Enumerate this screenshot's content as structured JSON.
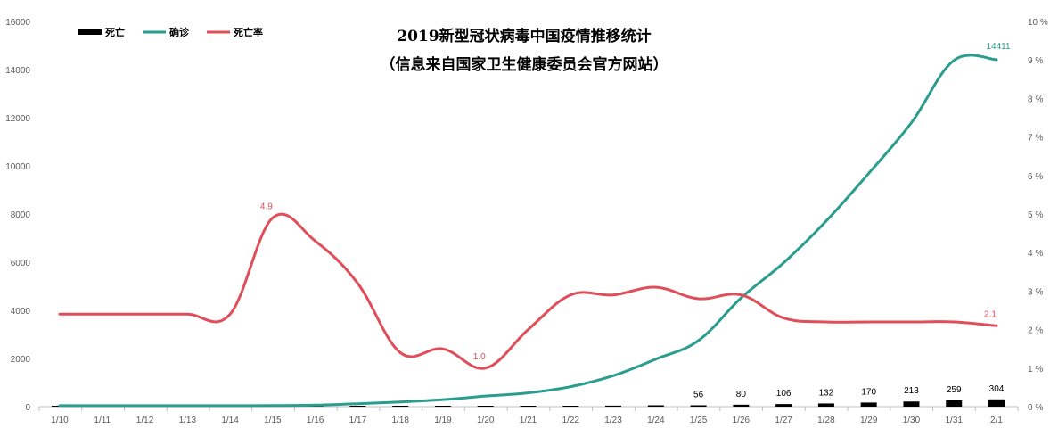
{
  "chart_data": {
    "type": "combo",
    "title": "2019新型冠状病毒中国疫情推移统计",
    "subtitle": "（信息来自国家卫生健康委员会官方网站）",
    "categories": [
      "1/10",
      "1/11",
      "1/12",
      "1/13",
      "1/14",
      "1/15",
      "1/16",
      "1/17",
      "1/18",
      "1/19",
      "1/20",
      "1/21",
      "1/22",
      "1/23",
      "1/24",
      "1/25",
      "1/26",
      "1/27",
      "1/28",
      "1/29",
      "1/30",
      "1/31",
      "2/1"
    ],
    "series": [
      {
        "name": "死亡",
        "type": "bar",
        "axis": "left",
        "color": "#000000",
        "values": [
          1,
          1,
          2,
          2,
          2,
          2,
          2,
          3,
          4,
          6,
          9,
          17,
          25,
          41,
          56,
          56,
          80,
          106,
          132,
          170,
          213,
          259,
          304
        ]
      },
      {
        "name": "确诊",
        "type": "line",
        "axis": "left",
        "color": "#2a9d8f",
        "values": [
          41,
          41,
          41,
          41,
          41,
          45,
          62,
          121,
          198,
          291,
          440,
          571,
          830,
          1287,
          1975,
          2744,
          4515,
          5974,
          7711,
          9692,
          11791,
          14380,
          14411
        ]
      },
      {
        "name": "死亡率",
        "type": "line",
        "axis": "right",
        "unit": "%",
        "color": "#e04e5a",
        "values": [
          2.4,
          2.4,
          2.4,
          2.4,
          2.4,
          4.9,
          4.3,
          3.2,
          1.4,
          1.5,
          1.0,
          2.0,
          2.9,
          2.9,
          3.1,
          2.8,
          2.9,
          2.3,
          2.2,
          2.2,
          2.2,
          2.2,
          2.1
        ]
      }
    ],
    "left_axis": {
      "ylim": [
        0,
        16000
      ],
      "ticks": [
        "0",
        "2000",
        "4000",
        "6000",
        "8000",
        "10000",
        "12000",
        "14000",
        "16000"
      ]
    },
    "right_axis": {
      "ylim": [
        0,
        10
      ],
      "ticks": [
        "0 %",
        "1 %",
        "2 %",
        "3 %",
        "4 %",
        "5 %",
        "6 %",
        "7 %",
        "8 %",
        "9 %",
        "10 %"
      ]
    },
    "bar_labels": [
      {
        "index": 15,
        "text": "56"
      },
      {
        "index": 16,
        "text": "80"
      },
      {
        "index": 17,
        "text": "106"
      },
      {
        "index": 18,
        "text": "132"
      },
      {
        "index": 19,
        "text": "170"
      },
      {
        "index": 20,
        "text": "213"
      },
      {
        "index": 21,
        "text": "259"
      },
      {
        "index": 22,
        "text": "304"
      }
    ],
    "confirmed_labels": [
      {
        "index": 22,
        "text": "14411"
      }
    ],
    "rate_labels": [
      {
        "index": 5,
        "text": "4.9"
      },
      {
        "index": 10,
        "text": "1.0"
      },
      {
        "index": 22,
        "text": "2.1"
      }
    ],
    "legend": [
      {
        "name": "死亡",
        "kind": "bar",
        "color": "#000000"
      },
      {
        "name": "确诊",
        "kind": "line",
        "color": "#2a9d8f"
      },
      {
        "name": "死亡率",
        "kind": "line",
        "color": "#e04e5a"
      }
    ],
    "legend_position": "top-left",
    "grid": false
  }
}
